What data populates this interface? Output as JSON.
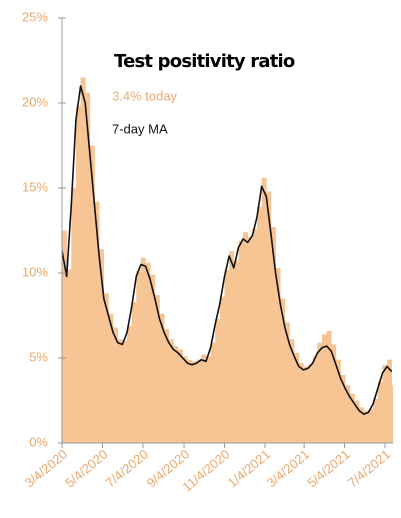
{
  "chart_data": {
    "type": "bar_line",
    "title": "Test positivity ratio",
    "annotations": [
      "3.4% today",
      "7-day MA"
    ],
    "annotation_colors": [
      "#e9a86c",
      "#111111"
    ],
    "x": [
      0,
      7,
      14,
      21,
      28,
      35,
      42,
      49,
      56,
      63,
      70,
      77,
      84,
      91,
      98,
      105,
      112,
      119,
      126,
      133,
      140,
      147,
      154,
      161,
      168,
      175,
      182,
      189,
      196,
      203,
      210,
      217,
      224,
      231,
      238,
      245,
      252,
      259,
      266,
      273,
      280,
      287,
      294,
      301,
      308,
      315,
      322,
      329,
      336,
      343,
      350,
      357,
      364,
      371,
      378,
      385,
      392,
      399,
      406,
      413,
      420,
      427,
      434,
      441,
      448,
      455,
      462,
      469,
      476,
      483,
      490,
      497
    ],
    "series": [
      {
        "type": "bar",
        "color": "#f7c494",
        "values": [
          12.5,
          10.2,
          15,
          19.8,
          21.5,
          20.6,
          17.5,
          14.2,
          11.4,
          8.8,
          7.6,
          6.8,
          6.1,
          6,
          6.9,
          8.3,
          10.1,
          10.9,
          10.6,
          9.9,
          8.7,
          7.6,
          6.7,
          6.1,
          5.7,
          5.5,
          5.1,
          4.9,
          4.8,
          4.9,
          5.2,
          5.1,
          5.9,
          7.3,
          8.6,
          10.2,
          11.3,
          10.7,
          11.9,
          12.4,
          12.1,
          12.6,
          13.9,
          15.6,
          14.8,
          12.7,
          10.3,
          8.5,
          7.1,
          6.1,
          5.3,
          4.7,
          4.5,
          4.6,
          5.1,
          5.9,
          6.4,
          6.6,
          5.8,
          4.9,
          4,
          3.4,
          2.9,
          2.5,
          2.1,
          1.9,
          2,
          2.6,
          3.6,
          4.6,
          4.9,
          3.4
        ]
      },
      {
        "type": "line",
        "color": "#111111",
        "values": [
          11.3,
          9.8,
          14,
          19,
          21,
          20,
          17,
          14,
          11,
          8.5,
          7.5,
          6.5,
          5.9,
          5.8,
          6.5,
          8,
          9.8,
          10.5,
          10.4,
          9.6,
          8.5,
          7.3,
          6.5,
          5.9,
          5.5,
          5.3,
          5,
          4.7,
          4.6,
          4.7,
          4.9,
          4.8,
          5.6,
          7,
          8.2,
          9.8,
          11,
          10.3,
          11.5,
          12,
          11.8,
          12.2,
          13.3,
          15.1,
          14.5,
          12.3,
          10,
          8.2,
          6.8,
          5.8,
          5.1,
          4.5,
          4.3,
          4.4,
          4.7,
          5.3,
          5.6,
          5.7,
          5.4,
          4.6,
          3.8,
          3.2,
          2.7,
          2.3,
          1.9,
          1.7,
          1.8,
          2.3,
          3.2,
          4.1,
          4.5,
          4.2
        ]
      }
    ],
    "xlim": [
      0,
      499
    ],
    "xticks": [
      {
        "value": 0,
        "label": "3/4/2020"
      },
      {
        "value": 61,
        "label": "5/4/2020"
      },
      {
        "value": 122,
        "label": "7/4/2020"
      },
      {
        "value": 184,
        "label": "9/4/2020"
      },
      {
        "value": 245,
        "label": "11/4/2020"
      },
      {
        "value": 306,
        "label": "1/4/2021"
      },
      {
        "value": 365,
        "label": "3/4/2021"
      },
      {
        "value": 426,
        "label": "5/4/2021"
      },
      {
        "value": 487,
        "label": "7/4/2021"
      }
    ],
    "ylim": [
      0,
      25
    ],
    "yticks": [
      {
        "value": 0,
        "label": "0%"
      },
      {
        "value": 5,
        "label": "5%"
      },
      {
        "value": 10,
        "label": "10%"
      },
      {
        "value": 15,
        "label": "15%"
      },
      {
        "value": 20,
        "label": "20%"
      },
      {
        "value": 25,
        "label": "25%"
      }
    ]
  }
}
